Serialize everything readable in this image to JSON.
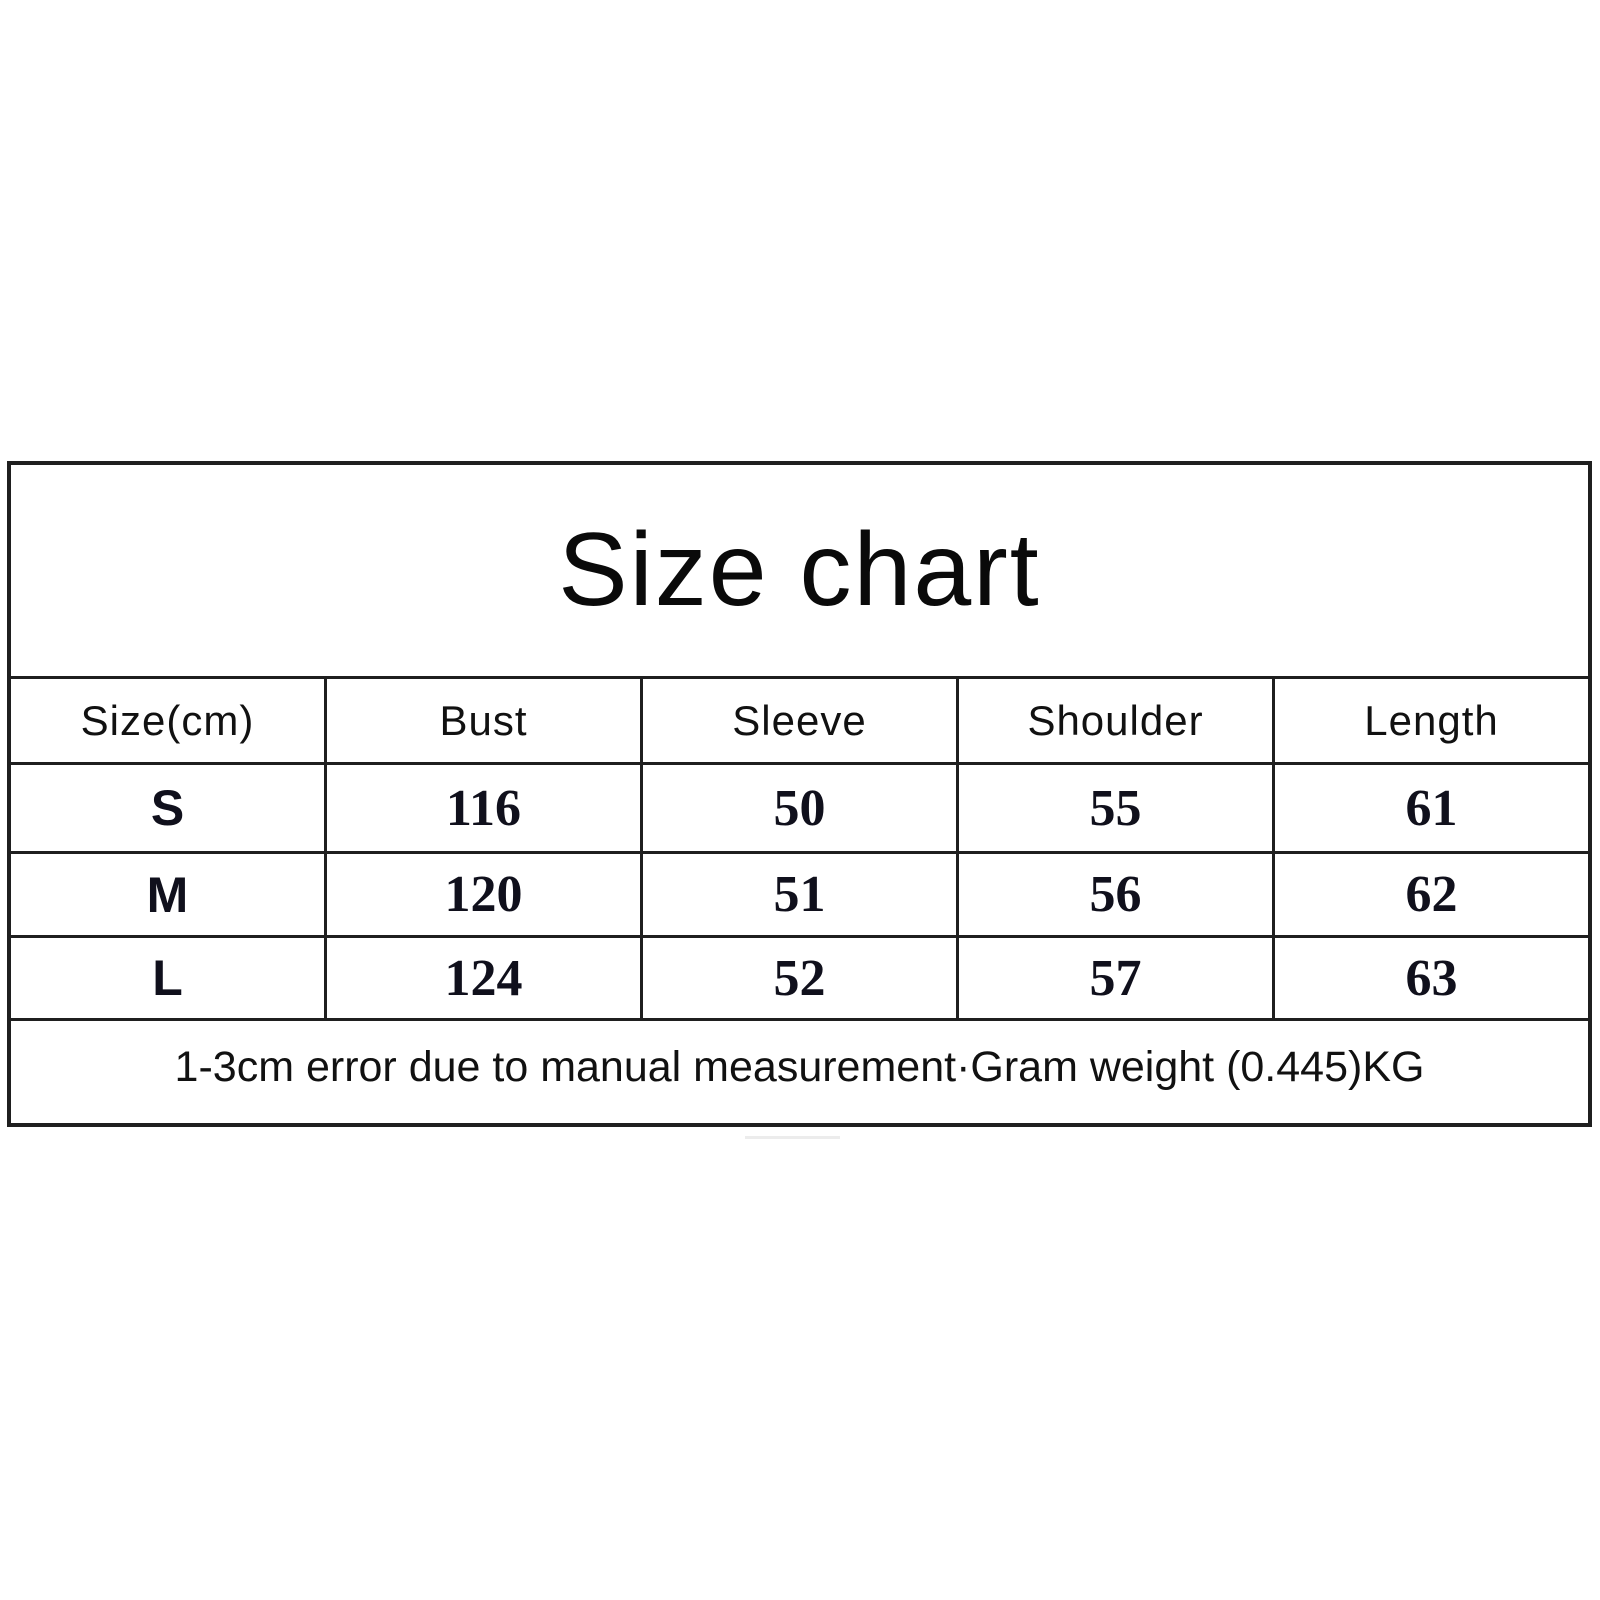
{
  "title": "Size chart",
  "columns": [
    "Size(cm)",
    "Bust",
    "Sleeve",
    "Shoulder",
    "Length"
  ],
  "rows": [
    {
      "cells": [
        "S",
        "116",
        "50",
        "55",
        "61"
      ]
    },
    {
      "cells": [
        "M",
        "120",
        "51",
        "56",
        "62"
      ]
    },
    {
      "cells": [
        "L",
        "124",
        "52",
        "57",
        "63"
      ]
    }
  ],
  "footer": "1-3cm error due to manual measurement·Gram weight (0.445)KG",
  "colors": {
    "border": "#1f1f1f",
    "text": "#111111",
    "background": "#ffffff"
  },
  "chart_data": {
    "type": "table",
    "title": "Size chart",
    "columns": [
      "Size(cm)",
      "Bust",
      "Sleeve",
      "Shoulder",
      "Length"
    ],
    "rows": [
      [
        "S",
        116,
        50,
        55,
        61
      ],
      [
        "M",
        120,
        51,
        56,
        62
      ],
      [
        "L",
        124,
        52,
        57,
        63
      ]
    ],
    "unit": "cm",
    "note": "1-3cm error due to manual measurement·Gram weight (0.445)KG",
    "gram_weight_kg": 0.445
  }
}
